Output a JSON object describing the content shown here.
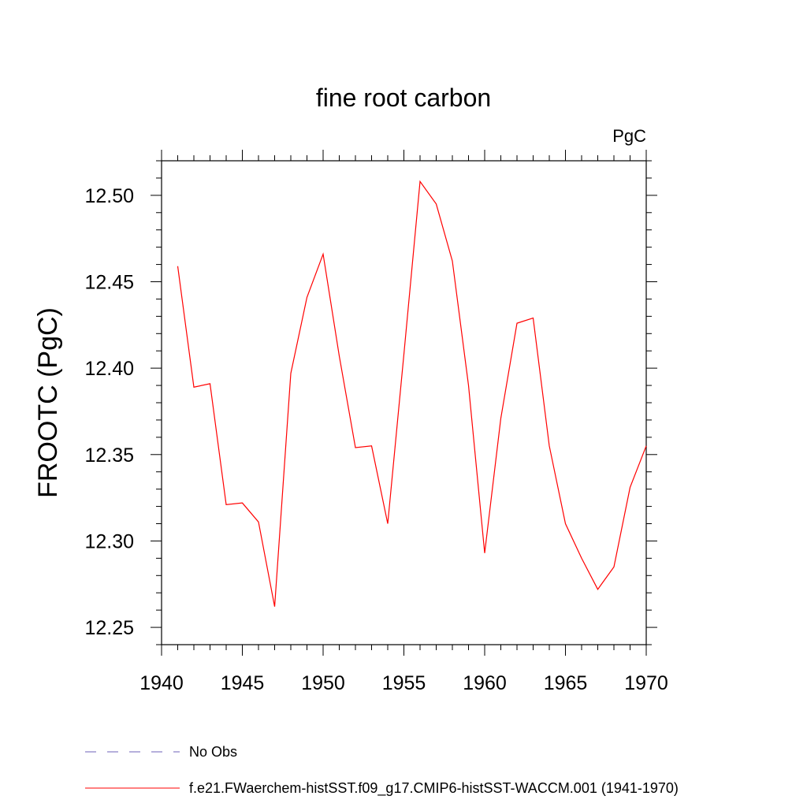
{
  "chart_data": {
    "type": "line",
    "title": "fine root carbon",
    "units": "PgC",
    "xlabel": "",
    "ylabel": "FROOTC  (PgC)",
    "xlim": [
      1940,
      1970
    ],
    "ylim": [
      12.24,
      12.52
    ],
    "x_ticks": [
      1940,
      1945,
      1950,
      1955,
      1960,
      1965,
      1970
    ],
    "x_tick_labels": [
      "1940",
      "1945",
      "1950",
      "1955",
      "1960",
      "1965",
      "1970"
    ],
    "y_ticks": [
      12.25,
      12.3,
      12.35,
      12.4,
      12.45,
      12.5
    ],
    "y_tick_labels": [
      "12.25",
      "12.30",
      "12.35",
      "12.40",
      "12.45",
      "12.50"
    ],
    "grid": false,
    "legend_position": "bottom",
    "series": [
      {
        "name": "f.e21.FWaerchem-histSST.f09_g17.CMIP6-histSST-WACCM.001 (1941-1970)",
        "color": "#ff0000",
        "line_style": "solid",
        "x": [
          1941,
          1942,
          1943,
          1944,
          1945,
          1946,
          1947,
          1948,
          1949,
          1950,
          1951,
          1952,
          1953,
          1954,
          1955,
          1956,
          1957,
          1958,
          1959,
          1960,
          1961,
          1962,
          1963,
          1964,
          1965,
          1966,
          1967,
          1968,
          1969,
          1970
        ],
        "values": [
          12.459,
          12.389,
          12.391,
          12.321,
          12.322,
          12.311,
          12.262,
          12.397,
          12.441,
          12.466,
          12.407,
          12.354,
          12.355,
          12.31,
          12.408,
          12.508,
          12.495,
          12.462,
          12.39,
          12.293,
          12.371,
          12.426,
          12.429,
          12.355,
          12.31,
          12.29,
          12.272,
          12.285,
          12.331,
          12.355
        ]
      }
    ],
    "legend": [
      {
        "label": "No Obs",
        "color": "#6e62b8",
        "line_style": "dashed"
      },
      {
        "label": "f.e21.FWaerchem-histSST.f09_g17.CMIP6-histSST-WACCM.001 (1941-1970)",
        "color": "#ff0000",
        "line_style": "solid"
      }
    ]
  }
}
